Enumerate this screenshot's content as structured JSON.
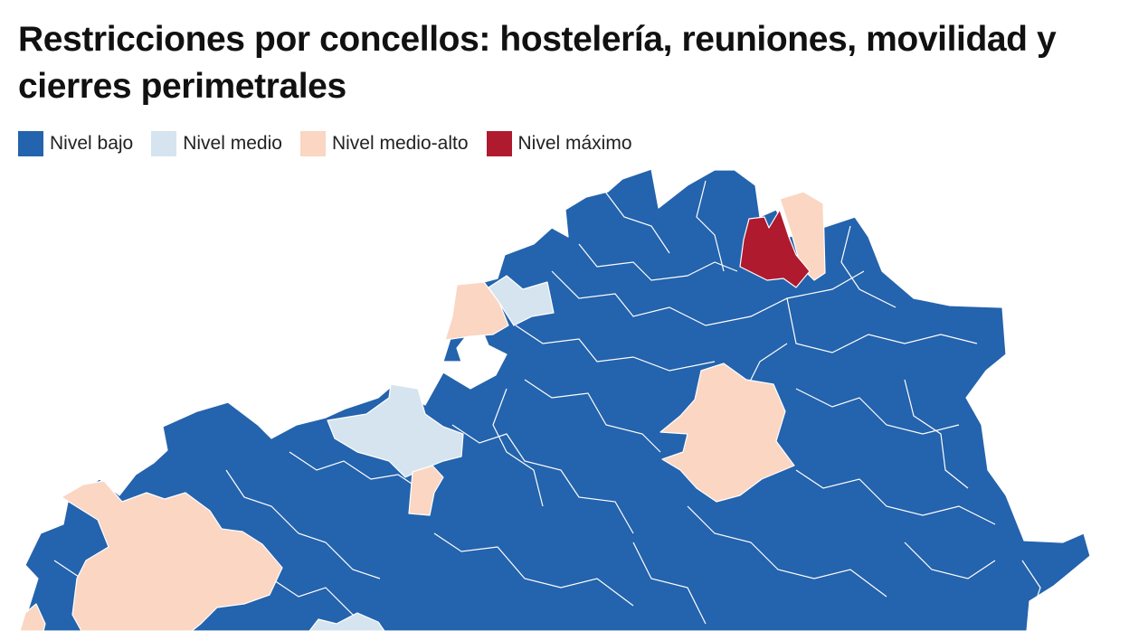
{
  "title": "Restricciones por concellos: hostelería, reuniones, movilidad y cierres perimetrales",
  "legend": [
    {
      "label": "Nivel bajo",
      "color": "#2463ad"
    },
    {
      "label": "Nivel medio",
      "color": "#d5e4ef"
    },
    {
      "label": "Nivel medio-alto",
      "color": "#fad6c3"
    },
    {
      "label": "Nivel máximo",
      "color": "#b01a2e"
    }
  ]
}
